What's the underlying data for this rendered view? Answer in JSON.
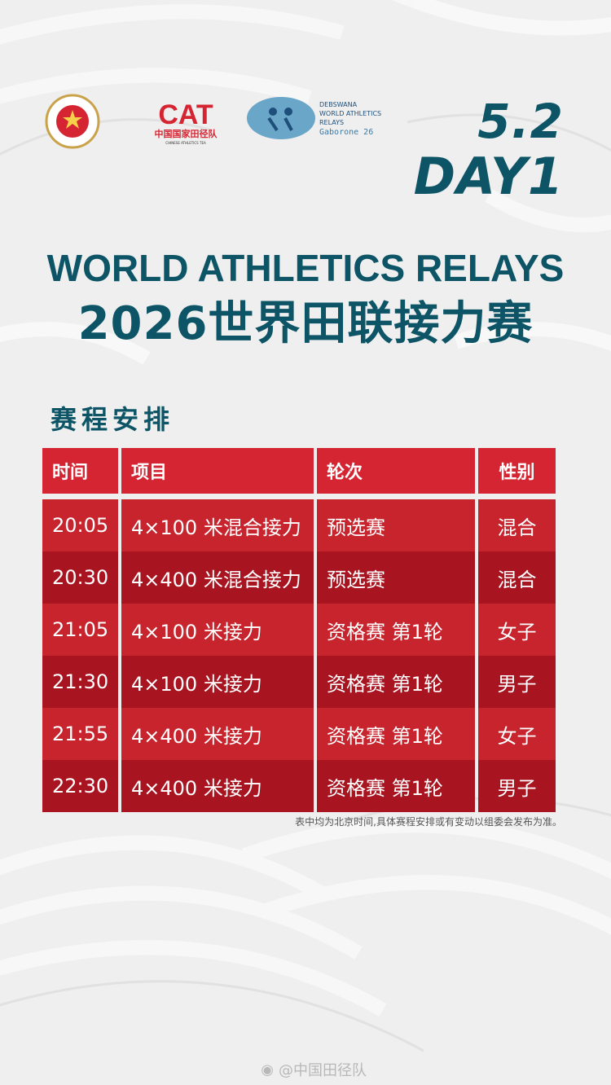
{
  "colors": {
    "teal": "#0d5566",
    "header_red": "#d62532",
    "row_red_a": "#c7242d",
    "row_red_b": "#a81520"
  },
  "logos": {
    "caa": {
      "icon": "chinese-athletics-association-emblem",
      "ring_text": "CHINESE ATHLETICS ASSOCIATION",
      "bottom_text": "中国田径协会"
    },
    "cat": {
      "mark": "CAT",
      "name_cn": "中国国家田径队",
      "name_en": "CHINESE ATHLETICS TEA"
    },
    "relays": {
      "line1": "DEBSWANA",
      "line2": "WORLD ATHLETICS",
      "line3": "RELAYS",
      "line4": "Gaborone 26"
    }
  },
  "day": {
    "date": "5.2",
    "label": "DAY1"
  },
  "title": {
    "en": "WORLD ATHLETICS RELAYS",
    "cn": "2026世界田联接力赛"
  },
  "section_title": "赛程安排",
  "table": {
    "headers": [
      "时间",
      "项目",
      "轮次",
      "性别"
    ],
    "rows": [
      {
        "time": "20:05",
        "event": "4×100 米混合接力",
        "round": "预选赛",
        "gender": "混合"
      },
      {
        "time": "20:30",
        "event": "4×400 米混合接力",
        "round": "预选赛",
        "gender": "混合"
      },
      {
        "time": "21:05",
        "event": "4×100 米接力",
        "round": "资格赛 第1轮",
        "gender": "女子"
      },
      {
        "time": "21:30",
        "event": "4×100 米接力",
        "round": "资格赛 第1轮",
        "gender": "男子"
      },
      {
        "time": "21:55",
        "event": "4×400 米接力",
        "round": "资格赛 第1轮",
        "gender": "女子"
      },
      {
        "time": "22:30",
        "event": "4×400 米接力",
        "round": "资格赛 第1轮",
        "gender": "男子"
      }
    ]
  },
  "note": "表中均为北京时间,具体赛程安排或有变动以组委会发布为准。",
  "watermark": "@中国田径队"
}
